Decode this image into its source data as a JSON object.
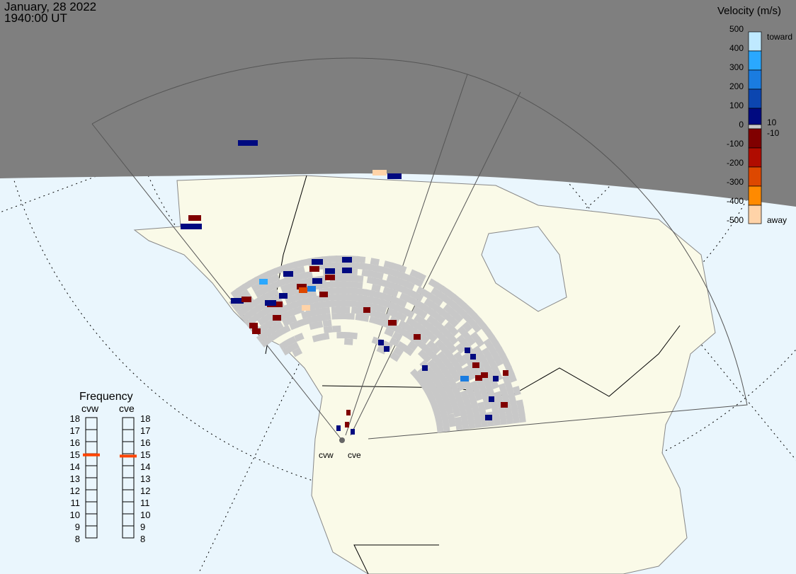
{
  "header": {
    "date": "January, 28 2022",
    "time": "1940:00 UT"
  },
  "velocity_scale": {
    "title": "Velocity (m/s)",
    "ticks": [
      "500",
      "400",
      "300",
      "200",
      "100",
      "0",
      "-100",
      "-200",
      "-300",
      "-400",
      "-500"
    ],
    "toward_label": "toward",
    "away_label": "away",
    "inner_pos": "10",
    "inner_neg": "-10",
    "colors": [
      "#bfe9ff",
      "#2aa8ff",
      "#1a7ce0",
      "#0c46b0",
      "#000a80",
      "#c8c8c8",
      "#800000",
      "#b00c00",
      "#dd4800",
      "#ff8a00",
      "#ffd3a8"
    ]
  },
  "frequency": {
    "title": "Frequency",
    "radars": [
      {
        "name": "cvw",
        "value_mhz": 14.9
      },
      {
        "name": "cve",
        "value_mhz": 14.8
      }
    ],
    "ticks": [
      "18",
      "17",
      "16",
      "15",
      "14",
      "13",
      "12",
      "11",
      "10",
      "9",
      "8"
    ],
    "marker_color": "#ff4400"
  },
  "map": {
    "radar_labels": [
      "cvw",
      "cve"
    ],
    "colors": {
      "ocean": "#eaf6fd",
      "land": "#fafae8",
      "night": "#7f7f7f",
      "ground_scatter": "#c8c8c8"
    }
  }
}
